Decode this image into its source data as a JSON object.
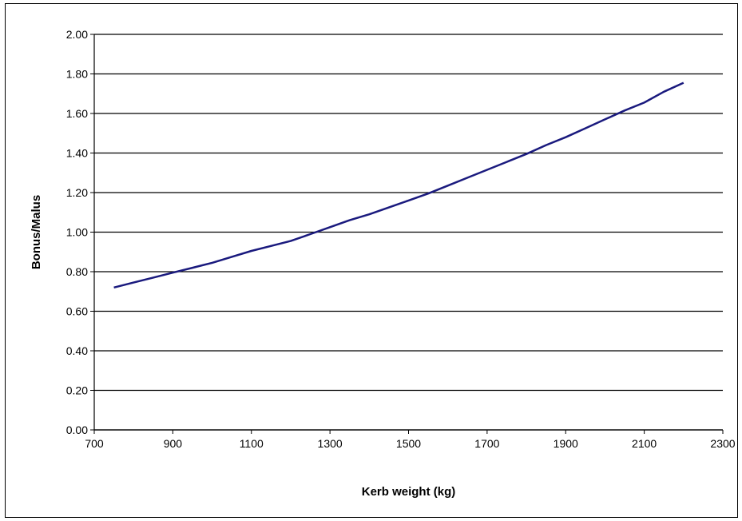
{
  "chart_data": {
    "type": "line",
    "xlabel": "Kerb weight (kg)",
    "ylabel": "Bonus/Malus",
    "xlim": [
      700,
      2300
    ],
    "ylim": [
      0,
      2.0
    ],
    "x_ticks": [
      "700",
      "900",
      "1100",
      "1300",
      "1500",
      "1700",
      "1900",
      "2100",
      "2300"
    ],
    "y_ticks": [
      "0.00",
      "0.20",
      "0.40",
      "0.60",
      "0.80",
      "1.00",
      "1.20",
      "1.40",
      "1.60",
      "1.80",
      "2.00"
    ],
    "grid": "horizontal",
    "series": [
      {
        "color": "#1a1a7e",
        "x": [
          750,
          800,
          850,
          900,
          950,
          1000,
          1050,
          1100,
          1150,
          1200,
          1250,
          1300,
          1350,
          1400,
          1450,
          1500,
          1550,
          1600,
          1650,
          1700,
          1750,
          1800,
          1850,
          1900,
          1950,
          2000,
          2050,
          2100,
          2150,
          2200
        ],
        "y": [
          0.72,
          0.745,
          0.77,
          0.795,
          0.82,
          0.845,
          0.875,
          0.905,
          0.93,
          0.955,
          0.99,
          1.025,
          1.06,
          1.09,
          1.125,
          1.16,
          1.195,
          1.235,
          1.275,
          1.315,
          1.355,
          1.395,
          1.44,
          1.48,
          1.525,
          1.57,
          1.615,
          1.655,
          1.71,
          1.755
        ]
      }
    ]
  }
}
